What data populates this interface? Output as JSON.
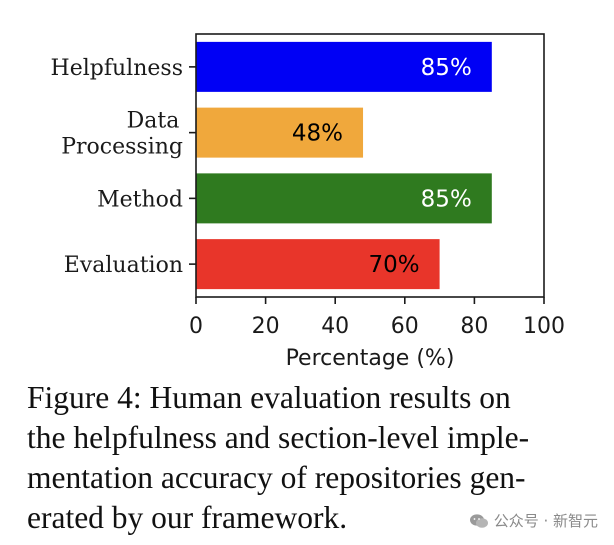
{
  "chart_data": {
    "type": "bar",
    "orientation": "horizontal",
    "categories": [
      "Helpfulness",
      "Data Processing",
      "Method",
      "Evaluation"
    ],
    "category_lines": [
      [
        "Helpfulness"
      ],
      [
        "Data",
        "Processing"
      ],
      [
        "Method"
      ],
      [
        "Evaluation"
      ]
    ],
    "values": [
      85,
      48,
      85,
      70
    ],
    "value_labels": [
      "85%",
      "48%",
      "85%",
      "70%"
    ],
    "bar_colors": [
      "#0000f5",
      "#f0a83c",
      "#2f7a1f",
      "#e8352a"
    ],
    "label_colors": [
      "#ffffff",
      "#000000",
      "#ffffff",
      "#000000"
    ],
    "xlabel": "Percentage (%)",
    "ylabel": "",
    "xlim": [
      0,
      100
    ],
    "xticks": [
      0,
      20,
      40,
      60,
      80,
      100
    ],
    "grid": false
  },
  "caption": {
    "lines": [
      "Figure 4: Human evaluation results on",
      "the helpfulness and section-level imple-",
      "mentation accuracy of repositories gen-",
      "erated by our framework."
    ]
  },
  "watermark": {
    "text": "公众号 · 新智元",
    "icon": "wechat-icon"
  }
}
